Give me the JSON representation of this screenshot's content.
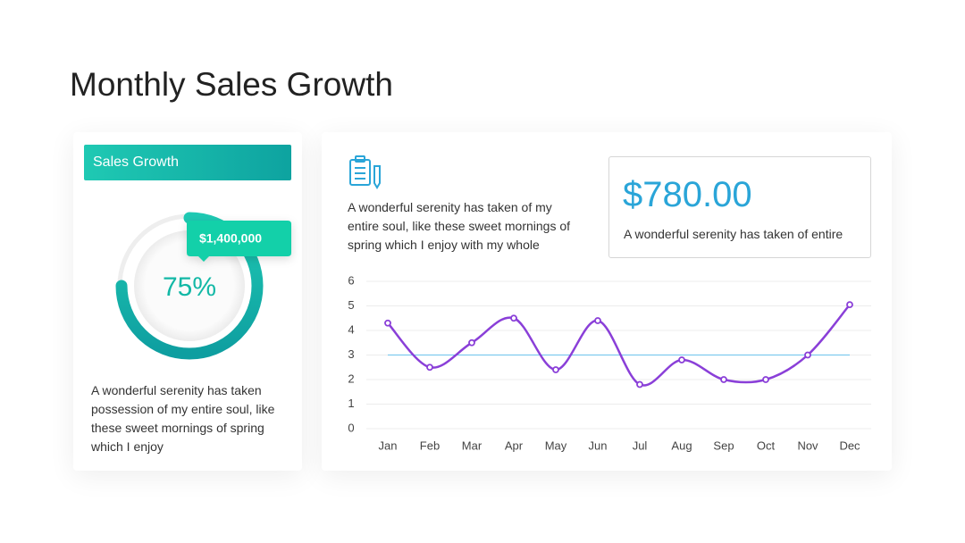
{
  "title": "Monthly Sales Growth",
  "left_card": {
    "header": "Sales Growth",
    "text": "A wonderful serenity has taken possession of my entire soul, like these sweet mornings of spring which I enjoy"
  },
  "right_card": {
    "text": "A wonderful serenity has taken of my entire soul, like these sweet mornings of spring which I enjoy with my whole",
    "stat": {
      "value": "$780.00",
      "caption": "A wonderful serenity has taken of entire"
    }
  },
  "chart_data": [
    {
      "type": "donut",
      "values": [
        75
      ],
      "value_labels": [
        "75%"
      ],
      "ylim": [
        0,
        100
      ],
      "annotation": "$1,400,000",
      "color": "#13b8a6"
    },
    {
      "type": "line",
      "categories": [
        "Jan",
        "Feb",
        "Mar",
        "Apr",
        "May",
        "Jun",
        "Jul",
        "Aug",
        "Sep",
        "Oct",
        "Nov",
        "Dec"
      ],
      "values": [
        4.3,
        2.5,
        3.5,
        4.5,
        2.4,
        4.4,
        1.8,
        2.8,
        2.0,
        2.0,
        3.0,
        5.05
      ],
      "color": "#8a3fd8",
      "hline": 3,
      "hline_color": "#6cc3ec",
      "ylim": [
        0,
        6
      ],
      "yticks": [
        0,
        1,
        2,
        3,
        4,
        5,
        6
      ],
      "grid": true
    }
  ]
}
